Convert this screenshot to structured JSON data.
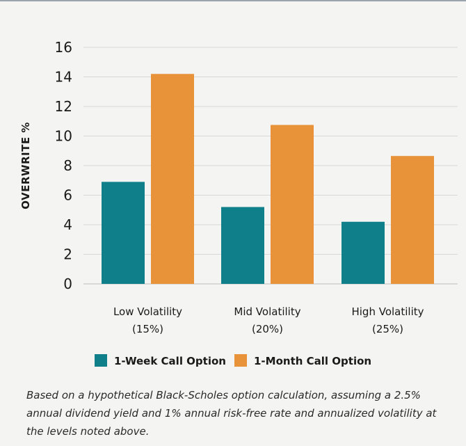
{
  "chart_data": {
    "type": "bar",
    "ylabel": "OVERWRITE %",
    "ylim": [
      0,
      16
    ],
    "yticks": [
      0,
      2,
      4,
      6,
      8,
      10,
      12,
      14,
      16
    ],
    "grid": true,
    "legend_position": "bottom",
    "categories": [
      [
        "Low Volatility",
        "(15%)"
      ],
      [
        "Mid Volatility",
        "(20%)"
      ],
      [
        "High Volatility",
        "(25%)"
      ]
    ],
    "series": [
      {
        "name": "1-Week Call Option",
        "color": "#0f7f8a",
        "values": [
          6.9,
          5.2,
          4.2
        ]
      },
      {
        "name": "1-Month Call Option",
        "color": "#e8923a",
        "values": [
          14.2,
          10.75,
          8.65
        ]
      }
    ]
  },
  "footnote": "Based on a hypothetical Black-Scholes option calculation, assuming a 2.5% annual dividend yield and 1% annual risk-free rate and annualized volatility at the levels noted above."
}
